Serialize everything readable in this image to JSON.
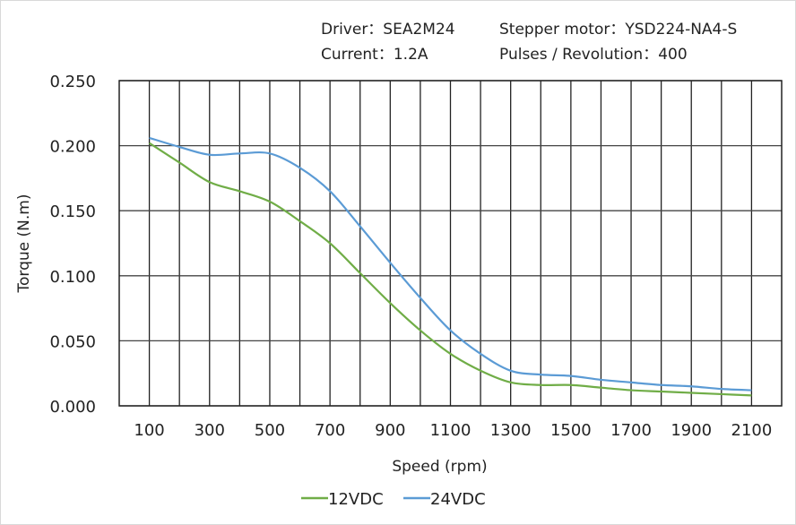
{
  "header": {
    "driver": "Driver：SEA2M24",
    "motor": "Stepper motor：YSD224-NA4-S",
    "current": "Current：1.2A",
    "pulses": "Pulses / Revolution：400"
  },
  "chart_data": {
    "type": "line",
    "xlabel": "Speed  (rpm)",
    "ylabel": "Torque (N.m)",
    "xlim": [
      0,
      2200
    ],
    "ylim": [
      0,
      0.25
    ],
    "grid": true,
    "legend_placement": "bottom",
    "x_ticks": [
      "100",
      "300",
      "500",
      "700",
      "900",
      "1100",
      "1300",
      "1500",
      "1700",
      "1900",
      "2100"
    ],
    "y_ticks": [
      "0.000",
      "0.050",
      "0.100",
      "0.150",
      "0.200",
      "0.250"
    ],
    "x": [
      100,
      200,
      300,
      400,
      500,
      600,
      700,
      800,
      900,
      1000,
      1100,
      1200,
      1300,
      1400,
      1500,
      1600,
      1700,
      1800,
      1900,
      2000,
      2100
    ],
    "series": [
      {
        "name": "12VDC",
        "color": "#70ad47",
        "values": [
          0.202,
          0.187,
          0.172,
          0.165,
          0.157,
          0.142,
          0.125,
          0.102,
          0.079,
          0.058,
          0.04,
          0.027,
          0.018,
          0.016,
          0.016,
          0.014,
          0.012,
          0.011,
          0.01,
          0.009,
          0.008
        ]
      },
      {
        "name": "24VDC",
        "color": "#5b9bd5",
        "values": [
          0.206,
          0.199,
          0.193,
          0.194,
          0.194,
          0.183,
          0.165,
          0.138,
          0.11,
          0.083,
          0.058,
          0.04,
          0.027,
          0.024,
          0.023,
          0.02,
          0.018,
          0.016,
          0.015,
          0.013,
          0.012
        ]
      }
    ]
  }
}
